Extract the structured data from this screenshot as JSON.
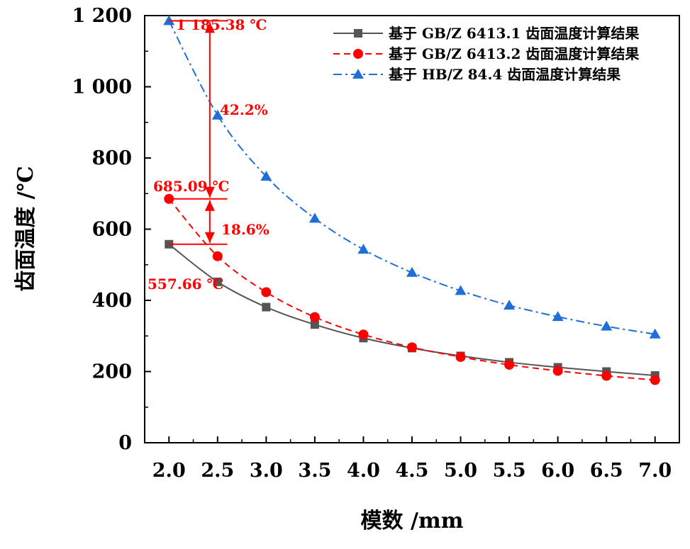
{
  "chart_data": {
    "type": "line",
    "xlabel": "模数 /mm",
    "ylabel": "齿面温度 /℃",
    "xlim": [
      1.75,
      7.25
    ],
    "ylim": [
      0,
      1200
    ],
    "x_ticks": [
      "2.0",
      "2.5",
      "3.0",
      "3.5",
      "4.0",
      "4.5",
      "5.0",
      "5.5",
      "6.0",
      "6.5",
      "7.0"
    ],
    "y_ticks": [
      "0",
      "200",
      "400",
      "600",
      "800",
      "1 000",
      "1 200"
    ],
    "x": [
      2.0,
      2.5,
      3.0,
      3.5,
      4.0,
      4.5,
      5.0,
      5.5,
      6.0,
      6.5,
      7.0
    ],
    "grid": false,
    "legend_position": "top-right",
    "series": [
      {
        "name": "基于 GB/Z 6413.1 齿面温度计算结果",
        "values": [
          557.66,
          452,
          381,
          332,
          294,
          266,
          244,
          226,
          212,
          200,
          189
        ],
        "color": "#555555",
        "marker": "square",
        "line_style": "solid"
      },
      {
        "name": "基于 GB/Z 6413.2 齿面温度计算结果",
        "values": [
          685.09,
          524,
          423,
          353,
          304,
          268,
          241,
          219,
          202,
          188,
          176
        ],
        "color": "#ff0000",
        "marker": "circle",
        "line_style": "dashed"
      },
      {
        "name": "基于 HB/Z 84.4 齿面温度计算结果",
        "values": [
          1185.38,
          920,
          748,
          630,
          543,
          478,
          427,
          386,
          354,
          327,
          305
        ],
        "color": "#1f6fd6",
        "marker": "triangle",
        "line_style": "dashdot"
      }
    ],
    "annotations": [
      {
        "text": "1 185.38 ℃",
        "x": 2.0,
        "y": 1185.38
      },
      {
        "text": "42.2%",
        "x": 2.42,
        "y": 935
      },
      {
        "text": "685.09 ℃",
        "x": 2.0,
        "y": 685.09
      },
      {
        "text": "18.6%",
        "x": 2.42,
        "y": 621
      },
      {
        "text": "557.66 ℃",
        "x": 2.0,
        "y": 557.66
      }
    ],
    "annotation_color": "#ff0000"
  }
}
